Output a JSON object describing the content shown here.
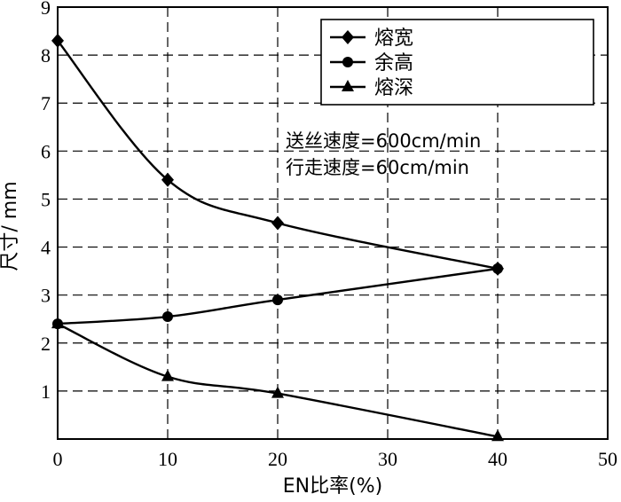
{
  "chart_data": {
    "type": "line",
    "xlabel": "EN比率(%)",
    "ylabel": "尺寸/ mm",
    "xlim": [
      0,
      50
    ],
    "ylim": [
      0,
      9
    ],
    "xticks": [
      0,
      10,
      20,
      30,
      40,
      50
    ],
    "yticks": [
      1,
      2,
      3,
      4,
      5,
      6,
      7,
      8,
      9
    ],
    "grid": true,
    "legend_position": "top-right",
    "annotations": [
      "送丝速度=600cm/min",
      "行走速度=60cm/min"
    ],
    "series": [
      {
        "name": "熔宽",
        "marker": "diamond",
        "x": [
          0,
          10,
          20,
          40
        ],
        "y": [
          8.3,
          5.4,
          4.5,
          3.55
        ]
      },
      {
        "name": "余高",
        "marker": "circle",
        "x": [
          0,
          10,
          20,
          40
        ],
        "y": [
          2.4,
          2.55,
          2.9,
          3.55
        ]
      },
      {
        "name": "熔深",
        "marker": "triangle",
        "x": [
          0,
          10,
          20,
          40
        ],
        "y": [
          2.4,
          1.3,
          0.95,
          0.05
        ]
      }
    ]
  }
}
